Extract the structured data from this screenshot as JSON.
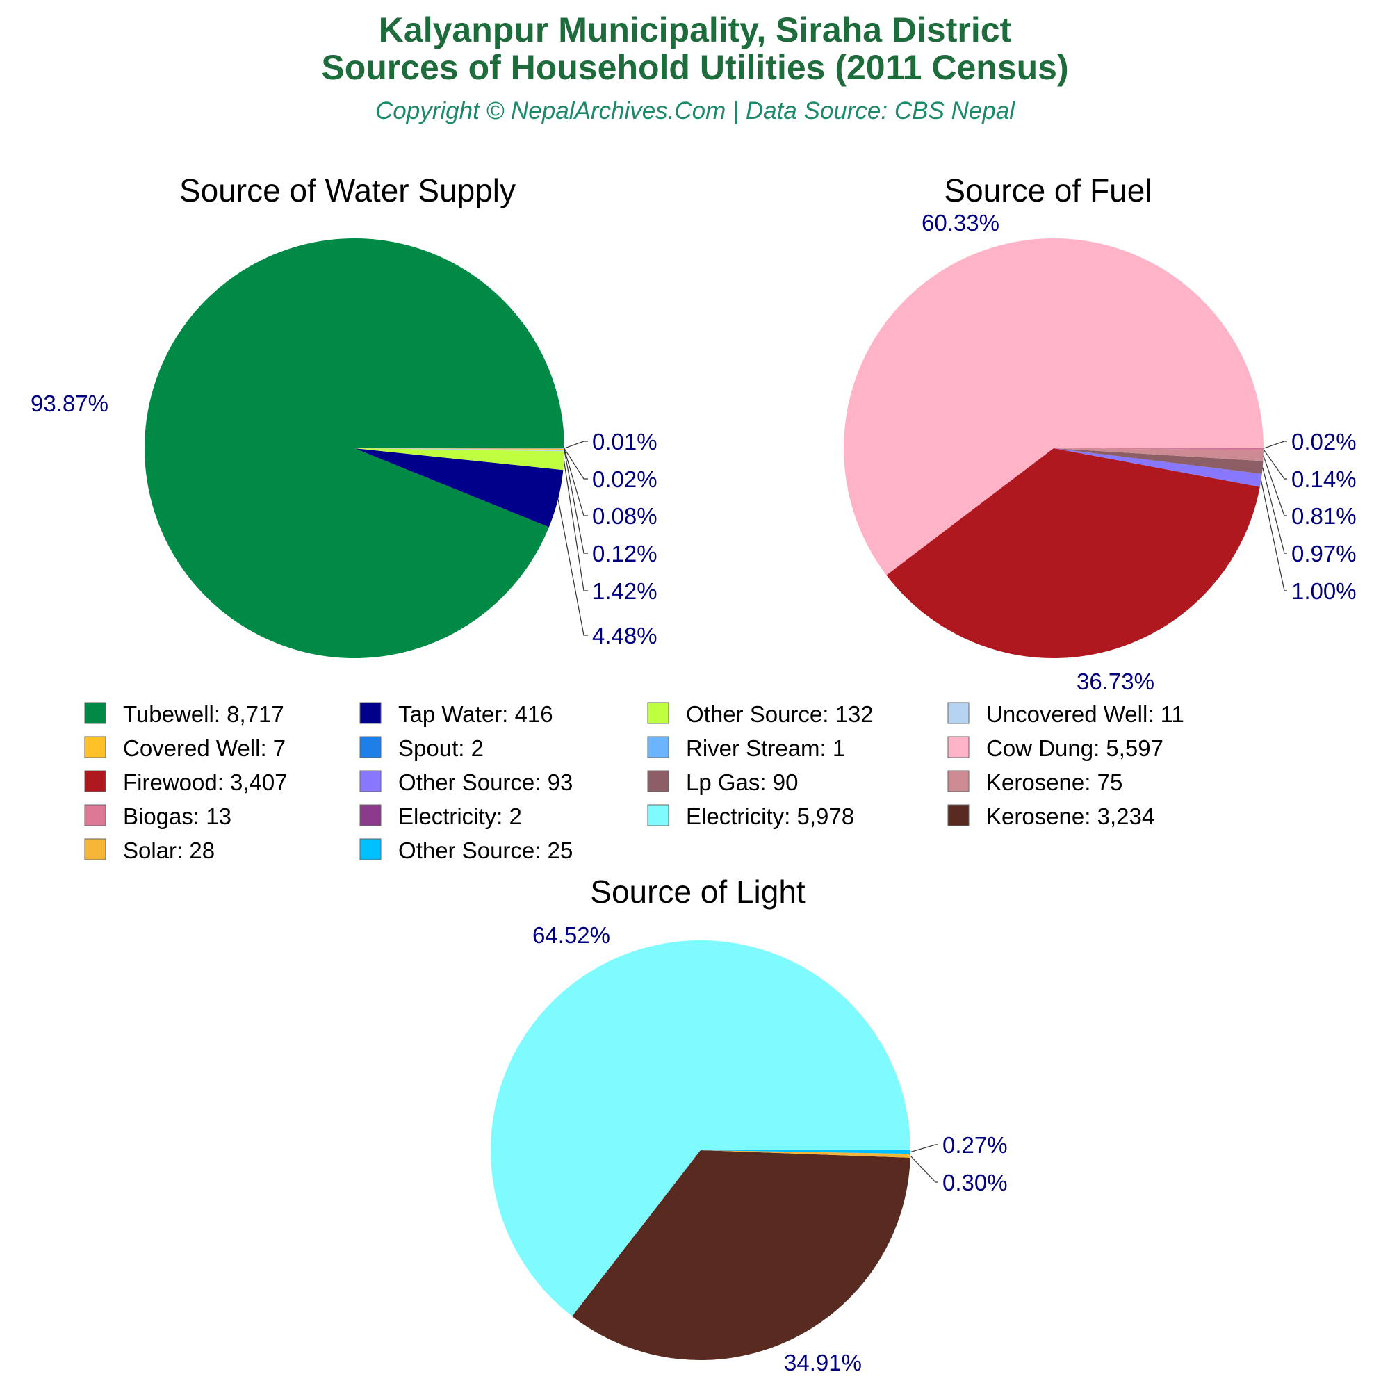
{
  "header": {
    "title_line1": "Kalyanpur Municipality, Siraha District",
    "title_line2": "Sources of Household Utilities (2011 Census)",
    "subtitle": "Copyright © NepalArchives.Com | Data Source: CBS Nepal"
  },
  "colors": {
    "title": "#1e6b3c",
    "subtitle": "#1b8a6b",
    "percent_label": "#00007f",
    "leader_line": "#333333"
  },
  "chart_data": [
    {
      "type": "pie",
      "title": "Source of Water Supply",
      "slices": [
        {
          "label": "Tubewell",
          "value": 8717,
          "display": "8,717",
          "percent": "93.87%",
          "color": "#008a45"
        },
        {
          "label": "Tap Water",
          "value": 416,
          "display": "416",
          "percent": "4.48%",
          "color": "#00008b"
        },
        {
          "label": "Other Source",
          "value": 132,
          "display": "132",
          "percent": "1.42%",
          "color": "#bfff3f"
        },
        {
          "label": "Uncovered Well",
          "value": 11,
          "display": "11",
          "percent": "0.12%",
          "color": "#b7d3f2"
        },
        {
          "label": "Covered Well",
          "value": 7,
          "display": "7",
          "percent": "0.08%",
          "color": "#ffc125"
        },
        {
          "label": "Spout",
          "value": 2,
          "display": "2",
          "percent": "0.02%",
          "color": "#1e7fe8"
        },
        {
          "label": "River Stream",
          "value": 1,
          "display": "1",
          "percent": "0.01%",
          "color": "#6bb5ff"
        }
      ]
    },
    {
      "type": "pie",
      "title": "Source of Fuel",
      "slices": [
        {
          "label": "Cow Dung",
          "value": 5597,
          "display": "5,597",
          "percent": "60.33%",
          "color": "#ffb3c6"
        },
        {
          "label": "Firewood",
          "value": 3407,
          "display": "3,407",
          "percent": "36.73%",
          "color": "#b01820"
        },
        {
          "label": "Other Source",
          "value": 93,
          "display": "93",
          "percent": "1.00%",
          "color": "#8877ff"
        },
        {
          "label": "Lp Gas",
          "value": 90,
          "display": "90",
          "percent": "0.97%",
          "color": "#8c5f66"
        },
        {
          "label": "Kerosene",
          "value": 75,
          "display": "75",
          "percent": "0.81%",
          "color": "#cc8a92"
        },
        {
          "label": "Biogas",
          "value": 13,
          "display": "13",
          "percent": "0.14%",
          "color": "#dd7896"
        },
        {
          "label": "Electricity",
          "value": 2,
          "display": "2",
          "percent": "0.02%",
          "color": "#8c3a8c"
        }
      ]
    },
    {
      "type": "pie",
      "title": "Source of Light",
      "slices": [
        {
          "label": "Electricity",
          "value": 5978,
          "display": "5,978",
          "percent": "64.52%",
          "color": "#7ffaff"
        },
        {
          "label": "Kerosene",
          "value": 3234,
          "display": "3,234",
          "percent": "34.91%",
          "color": "#582a20"
        },
        {
          "label": "Solar",
          "value": 28,
          "display": "28",
          "percent": "0.30%",
          "color": "#f5b537"
        },
        {
          "label": "Other Source",
          "value": 25,
          "display": "25",
          "percent": "0.27%",
          "color": "#00bfff"
        }
      ]
    }
  ],
  "legend": [
    {
      "text": "Tubewell: 8,717",
      "color": "#008a45"
    },
    {
      "text": "Tap Water: 416",
      "color": "#00008b"
    },
    {
      "text": "Other Source: 132",
      "color": "#bfff3f"
    },
    {
      "text": "Uncovered Well: 11",
      "color": "#b7d3f2"
    },
    {
      "text": "Covered Well: 7",
      "color": "#ffc125"
    },
    {
      "text": "Spout: 2",
      "color": "#1e7fe8"
    },
    {
      "text": "River Stream: 1",
      "color": "#6bb5ff"
    },
    {
      "text": "Cow Dung: 5,597",
      "color": "#ffb3c6"
    },
    {
      "text": "Firewood: 3,407",
      "color": "#b01820"
    },
    {
      "text": "Other Source: 93",
      "color": "#8877ff"
    },
    {
      "text": "Lp Gas: 90",
      "color": "#8c5f66"
    },
    {
      "text": "Kerosene: 75",
      "color": "#cc8a92"
    },
    {
      "text": "Biogas: 13",
      "color": "#dd7896"
    },
    {
      "text": "Electricity: 2",
      "color": "#8c3a8c"
    },
    {
      "text": "Electricity: 5,978",
      "color": "#7ffaff"
    },
    {
      "text": "Kerosene: 3,234",
      "color": "#582a20"
    },
    {
      "text": "Solar: 28",
      "color": "#f5b537"
    },
    {
      "text": "Other Source: 25",
      "color": "#00bfff"
    }
  ]
}
